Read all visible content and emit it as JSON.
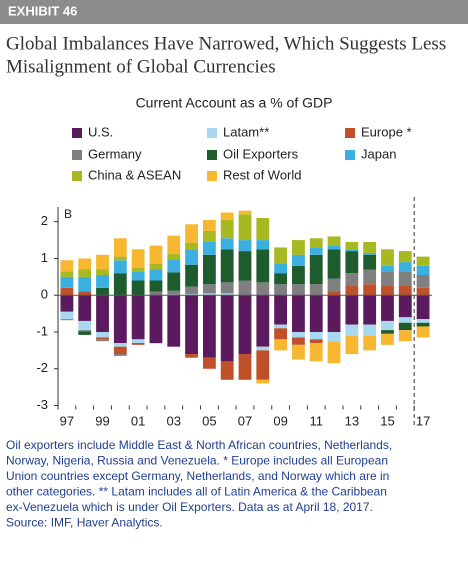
{
  "header": {
    "exhibit": "EXHIBIT 46",
    "title_line1": "Global Imbalances Have Narrowed, Which Suggests Less",
    "title_line2": "Misalignment of Global Currencies"
  },
  "chart_data": {
    "type": "stacked-bar",
    "title": "Current Account as a % of GDP",
    "annotation": "B",
    "categories": [
      "97",
      null,
      "99",
      null,
      "01",
      null,
      "03",
      null,
      "05",
      null,
      "07",
      null,
      "09",
      null,
      "11",
      null,
      "13",
      null,
      "15",
      null,
      "17"
    ],
    "series": [
      {
        "name": "U.S.",
        "color": "#5b1a5e",
        "values": [
          -0.45,
          -0.7,
          -1.0,
          -1.3,
          -1.2,
          -1.3,
          -1.4,
          -1.6,
          -1.7,
          -1.8,
          -1.6,
          -1.4,
          -0.8,
          -1.0,
          -1.0,
          -1.0,
          -0.8,
          -0.8,
          -0.7,
          -0.6,
          -0.65
        ]
      },
      {
        "name": "Latam**",
        "color": "#a8d8f0",
        "values": [
          -0.2,
          -0.25,
          -0.15,
          -0.1,
          -0.1,
          -0.02,
          0.02,
          0.03,
          0.05,
          0.05,
          0.0,
          -0.1,
          -0.1,
          -0.15,
          -0.2,
          -0.25,
          -0.3,
          -0.3,
          -0.25,
          -0.15,
          -0.1
        ]
      },
      {
        "name": "Europe *",
        "color": "#c0502a",
        "values": [
          0.2,
          0.1,
          -0.05,
          -0.2,
          -0.05,
          0.0,
          0.0,
          -0.1,
          -0.3,
          -0.5,
          -0.7,
          -0.8,
          -0.3,
          -0.2,
          -0.1,
          0.1,
          0.25,
          0.3,
          0.25,
          0.25,
          0.2
        ]
      },
      {
        "name": "Germany",
        "color": "#7f7f7f",
        "values": [
          -0.03,
          -0.03,
          -0.05,
          -0.05,
          0.0,
          0.1,
          0.1,
          0.2,
          0.25,
          0.3,
          0.4,
          0.35,
          0.3,
          0.3,
          0.3,
          0.35,
          0.35,
          0.4,
          0.4,
          0.4,
          0.35
        ]
      },
      {
        "name": "Oil Exporters",
        "color": "#1e5c2e",
        "values": [
          0.0,
          -0.1,
          0.2,
          0.6,
          0.4,
          0.3,
          0.5,
          0.6,
          0.8,
          0.9,
          0.8,
          0.9,
          0.3,
          0.5,
          0.8,
          0.8,
          0.6,
          0.4,
          -0.1,
          -0.2,
          -0.1
        ]
      },
      {
        "name": "Japan",
        "color": "#3bb0e0",
        "values": [
          0.3,
          0.4,
          0.35,
          0.35,
          0.25,
          0.3,
          0.35,
          0.4,
          0.35,
          0.3,
          0.3,
          0.25,
          0.25,
          0.3,
          0.2,
          0.1,
          0.05,
          0.05,
          0.15,
          0.25,
          0.25
        ]
      },
      {
        "name": "China & ASEAN",
        "color": "#a8b820",
        "values": [
          0.15,
          0.2,
          0.15,
          0.1,
          0.1,
          0.15,
          0.15,
          0.2,
          0.3,
          0.5,
          0.7,
          0.6,
          0.45,
          0.4,
          0.25,
          0.25,
          0.2,
          0.3,
          0.45,
          0.3,
          0.25
        ]
      },
      {
        "name": "Rest of World",
        "color": "#f7b731",
        "values": [
          0.3,
          0.3,
          0.4,
          0.5,
          0.5,
          0.5,
          0.5,
          0.5,
          0.3,
          0.2,
          0.1,
          -0.1,
          -0.3,
          -0.4,
          -0.5,
          -0.6,
          -0.5,
          -0.4,
          -0.3,
          -0.3,
          -0.3
        ]
      }
    ],
    "ylim": [
      -3,
      2.4
    ],
    "yticks": [
      -3,
      -2,
      -1,
      0,
      1,
      2
    ]
  },
  "footnote": [
    "Oil exporters include Middle East & North African countries, Netherlands,",
    "Norway, Nigeria, Russia and Venezuela. * Europe includes all European",
    "Union countries except Germany, Netherlands, and Norway which are in",
    "other categories. ** Latam includes all of Latin America & the Caribbean",
    "ex-Venezuela which is under Oil Exporters. Data as at April 18, 2017.",
    "Source: IMF, Haver Analytics."
  ]
}
